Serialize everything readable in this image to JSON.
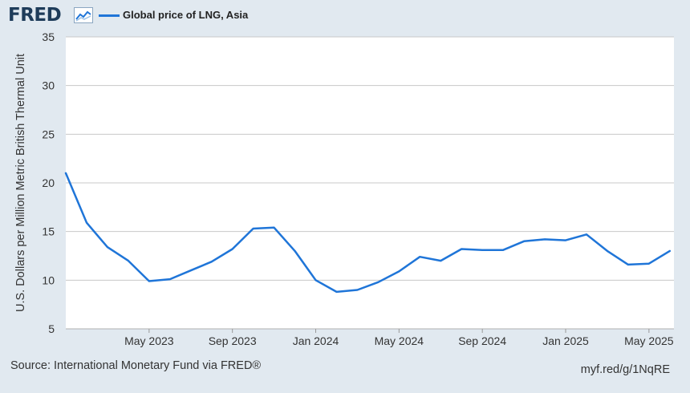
{
  "header": {
    "logo": "FRED",
    "logo_icon": "line-chart-icon",
    "legend_label": "Global price of LNG, Asia"
  },
  "footer": {
    "source": "Source: International Monetary Fund via FRED®",
    "short_url": "myf.red/g/1NqRE"
  },
  "colors": {
    "series": "#1f75d8",
    "background": "#e1e9f0",
    "plot": "#ffffff",
    "grid": "#c8c8c8"
  },
  "chart_data": {
    "type": "line",
    "title": "",
    "xlabel": "",
    "ylabel": "U.S. Dollars per Million Metric British Thermal Unit",
    "ylim": [
      5,
      35
    ],
    "yticks": [
      5,
      10,
      15,
      20,
      25,
      30,
      35
    ],
    "xlim": [
      "2023-01",
      "2025-06"
    ],
    "xticks": [
      {
        "label": "May 2023",
        "month": 4
      },
      {
        "label": "Sep 2023",
        "month": 8
      },
      {
        "label": "Jan 2024",
        "month": 12
      },
      {
        "label": "May 2024",
        "month": 16
      },
      {
        "label": "Sep 2024",
        "month": 20
      },
      {
        "label": "Jan 2025",
        "month": 24
      },
      {
        "label": "May 2025",
        "month": 28
      }
    ],
    "grid": true,
    "legend": "top-left",
    "series": [
      {
        "name": "Global price of LNG, Asia",
        "x": [
          "2023-01",
          "2023-02",
          "2023-03",
          "2023-04",
          "2023-05",
          "2023-06",
          "2023-07",
          "2023-08",
          "2023-09",
          "2023-10",
          "2023-11",
          "2023-12",
          "2024-01",
          "2024-02",
          "2024-03",
          "2024-04",
          "2024-05",
          "2024-06",
          "2024-07",
          "2024-08",
          "2024-09",
          "2024-10",
          "2024-11",
          "2024-12",
          "2025-01",
          "2025-02",
          "2025-03",
          "2025-04",
          "2025-05",
          "2025-06"
        ],
        "values": [
          21.0,
          15.9,
          13.4,
          12.0,
          9.9,
          10.1,
          11.0,
          11.9,
          13.2,
          15.3,
          15.4,
          13.0,
          10.0,
          8.8,
          9.0,
          9.8,
          10.9,
          12.4,
          12.0,
          13.2,
          13.1,
          13.1,
          14.0,
          14.2,
          14.1,
          14.7,
          13.0,
          11.6,
          11.7,
          13.0
        ]
      }
    ]
  }
}
